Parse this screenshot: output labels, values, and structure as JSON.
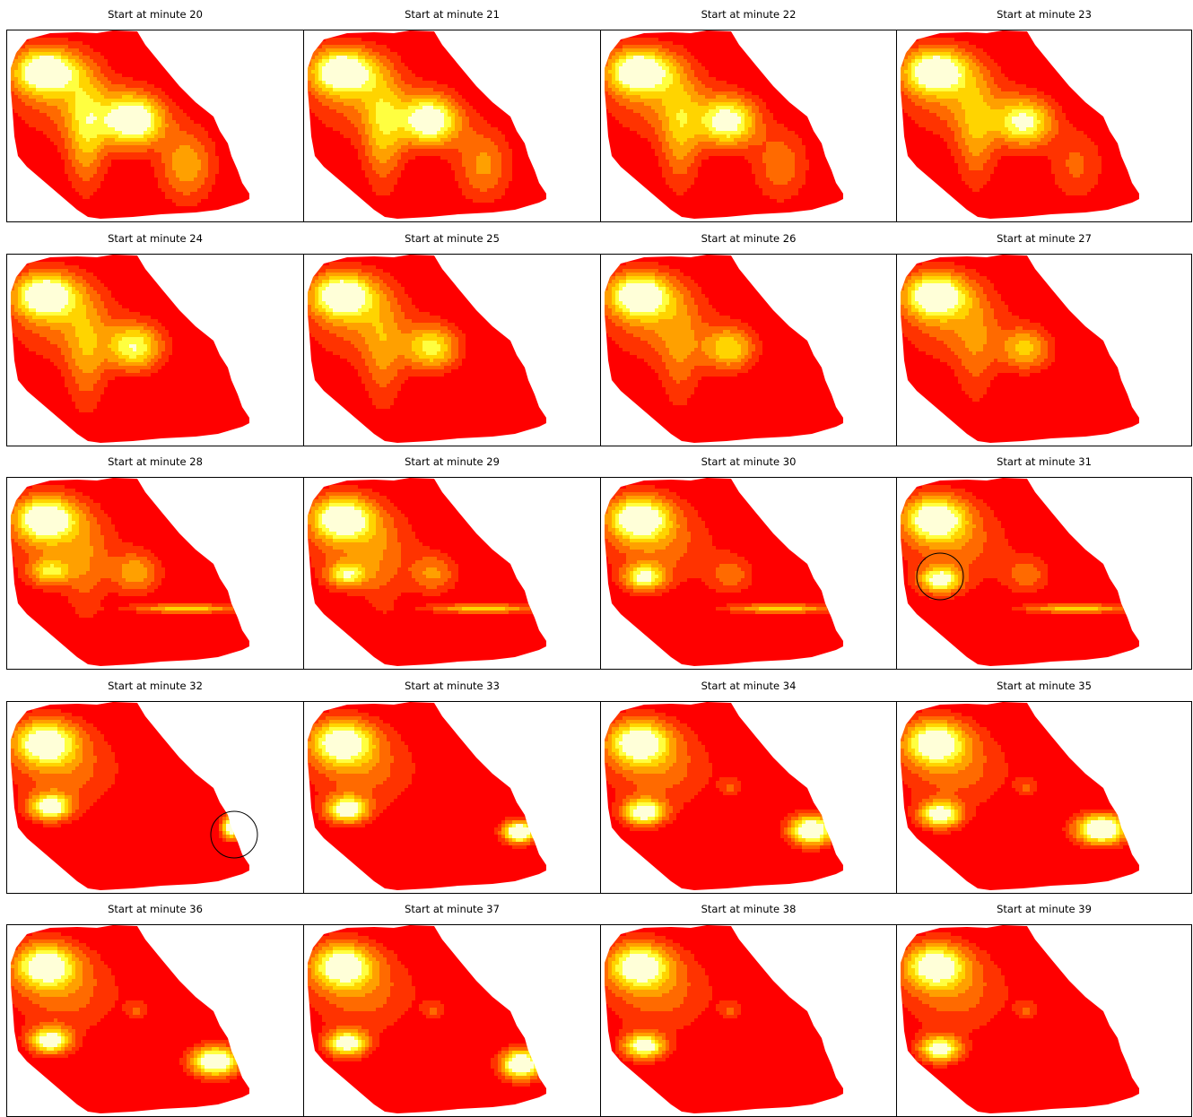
{
  "figure": {
    "rows": 5,
    "cols": 4,
    "colormap": [
      "#ff0000",
      "#ff3300",
      "#ff6a00",
      "#ffa000",
      "#ffd400",
      "#ffff40",
      "#ffffd8"
    ]
  },
  "chart_data": [
    {
      "type": "heatmap",
      "title": "Start at minute 20",
      "minute": 20
    },
    {
      "type": "heatmap",
      "title": "Start at minute 21",
      "minute": 21
    },
    {
      "type": "heatmap",
      "title": "Start at minute 22",
      "minute": 22
    },
    {
      "type": "heatmap",
      "title": "Start at minute 23",
      "minute": 23
    },
    {
      "type": "heatmap",
      "title": "Start at minute 24",
      "minute": 24
    },
    {
      "type": "heatmap",
      "title": "Start at minute 25",
      "minute": 25
    },
    {
      "type": "heatmap",
      "title": "Start at minute 26",
      "minute": 26
    },
    {
      "type": "heatmap",
      "title": "Start at minute 27",
      "minute": 27
    },
    {
      "type": "heatmap",
      "title": "Start at minute 28",
      "minute": 28
    },
    {
      "type": "heatmap",
      "title": "Start at minute 29",
      "minute": 29
    },
    {
      "type": "heatmap",
      "title": "Start at minute 30",
      "minute": 30
    },
    {
      "type": "heatmap",
      "title": "Start at minute 31",
      "minute": 31,
      "circled": true
    },
    {
      "type": "heatmap",
      "title": "Start at minute 32",
      "minute": 32,
      "circled": true
    },
    {
      "type": "heatmap",
      "title": "Start at minute 33",
      "minute": 33
    },
    {
      "type": "heatmap",
      "title": "Start at minute 34",
      "minute": 34
    },
    {
      "type": "heatmap",
      "title": "Start at minute 35",
      "minute": 35
    },
    {
      "type": "heatmap",
      "title": "Start at minute 36",
      "minute": 36
    },
    {
      "type": "heatmap",
      "title": "Start at minute 37",
      "minute": 37
    },
    {
      "type": "heatmap",
      "title": "Start at minute 38",
      "minute": 38
    },
    {
      "type": "heatmap",
      "title": "Start at minute 39",
      "minute": 39
    }
  ]
}
